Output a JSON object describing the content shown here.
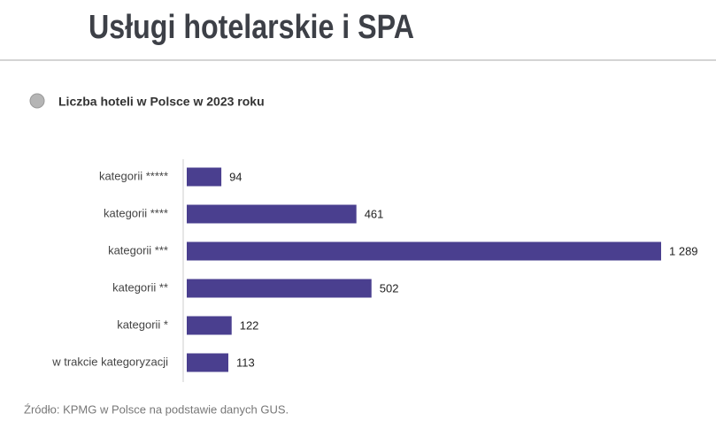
{
  "chart_data": {
    "type": "bar",
    "orientation": "horizontal",
    "title": "Usługi hotelarskie i SPA",
    "subtitle": "Liczba hoteli w Polsce w 2023 roku",
    "source": "Źródło: KPMG w Polsce na podstawie danych GUS.",
    "categories": [
      "kategorii *****",
      "kategorii ****",
      "kategorii ***",
      "kategorii **",
      "kategorii *",
      "w trakcie kategoryzacji"
    ],
    "values": [
      94,
      461,
      1289,
      502,
      122,
      113
    ],
    "value_labels": [
      "94",
      "461",
      "1 289",
      "502",
      "122",
      "113"
    ],
    "color": "#4a3f8f"
  }
}
